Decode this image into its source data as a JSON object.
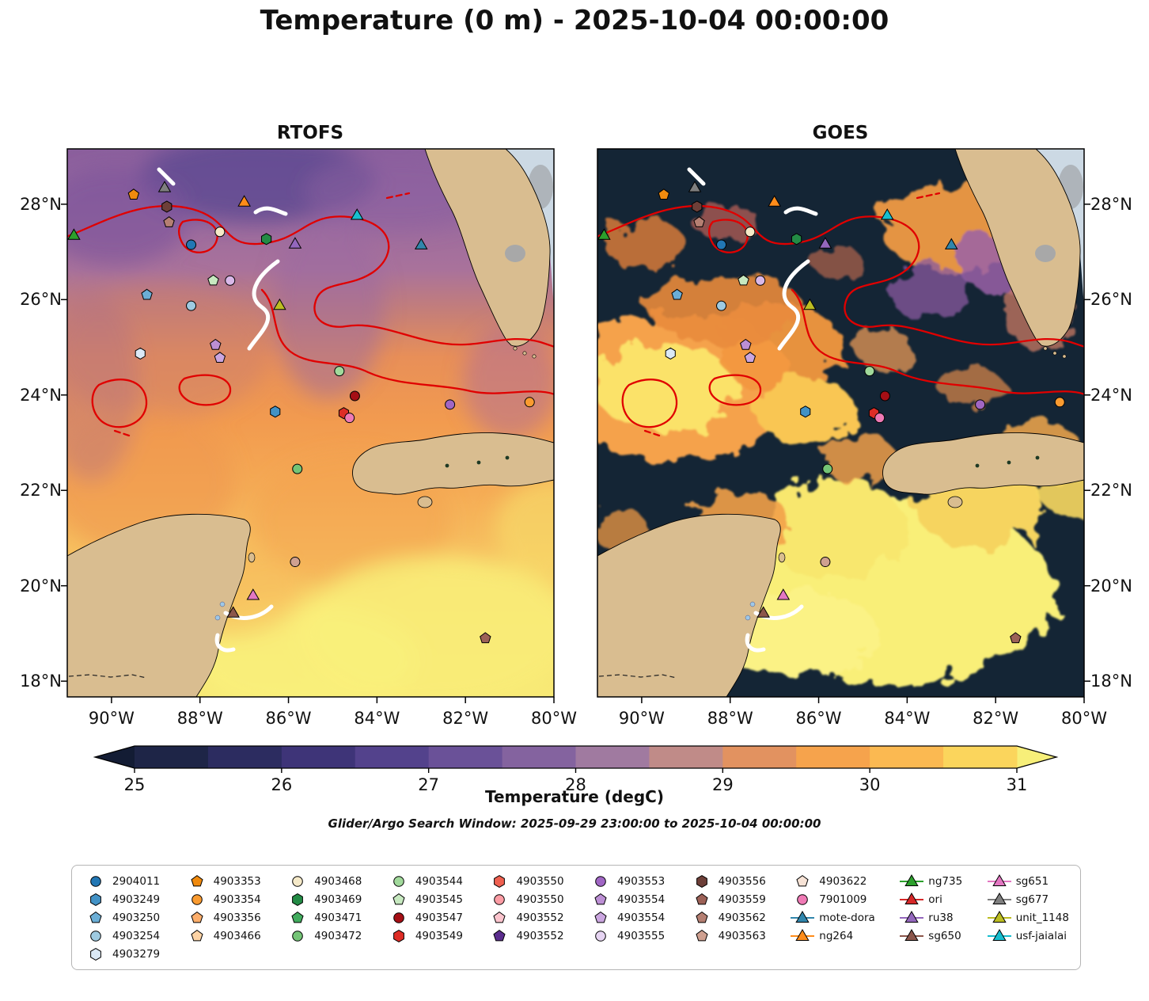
{
  "title": "Temperature (0 m) - 2025-10-04 00:00:00",
  "subtitle": "Glider/Argo Search Window: 2025-09-29 23:00:00 to 2025-10-04 00:00:00",
  "panels": {
    "left": "RTOFS",
    "right": "GOES"
  },
  "axes": {
    "lat_labels": [
      "28°N",
      "26°N",
      "24°N",
      "22°N",
      "20°N",
      "18°N"
    ],
    "lat_values": [
      28,
      26,
      24,
      22,
      20,
      18
    ],
    "lon_labels": [
      "90°W",
      "88°W",
      "86°W",
      "84°W",
      "82°W",
      "80°W"
    ],
    "lon_values": [
      -90,
      -88,
      -86,
      -84,
      -82,
      -80
    ]
  },
  "colorbar": {
    "label": "Temperature (degC)",
    "ticks": [
      25,
      26,
      27,
      28,
      29,
      30,
      31
    ],
    "min": 25,
    "max": 31,
    "under_color": "#131c34",
    "over_color": "#f7ef79",
    "bands": [
      {
        "from": 25.0,
        "to": 25.5,
        "color": "#1e2547"
      },
      {
        "from": 25.5,
        "to": 26.0,
        "color": "#2c2c60"
      },
      {
        "from": 26.0,
        "to": 26.5,
        "color": "#3e3478"
      },
      {
        "from": 26.5,
        "to": 27.0,
        "color": "#53428c"
      },
      {
        "from": 27.0,
        "to": 27.5,
        "color": "#6a5198"
      },
      {
        "from": 27.5,
        "to": 28.0,
        "color": "#84639f"
      },
      {
        "from": 28.0,
        "to": 28.5,
        "color": "#a07aa0"
      },
      {
        "from": 28.5,
        "to": 29.0,
        "color": "#c08b88"
      },
      {
        "from": 29.0,
        "to": 29.5,
        "color": "#e29260"
      },
      {
        "from": 29.5,
        "to": 30.0,
        "color": "#f6a34c"
      },
      {
        "from": 30.0,
        "to": 30.5,
        "color": "#fbb951"
      },
      {
        "from": 30.5,
        "to": 31.0,
        "color": "#fbd55c"
      }
    ]
  },
  "chart_data": {
    "type": "heatmap",
    "title": "Temperature (0 m) - 2025-10-04 00:00:00",
    "variable": "Sea surface temperature",
    "units": "degC",
    "value_range": [
      25,
      31
    ],
    "extent": {
      "lon_west": -91,
      "lon_east": -80,
      "lat_south": 17.7,
      "lat_north": 29.2
    },
    "panels": [
      {
        "name": "RTOFS",
        "description": "Model SST field: purple 27-28C band in north, orange 29-30C central Gulf, yellow 30-31C south/southeast near Cuba and Yucatan Channel"
      },
      {
        "name": "GOES",
        "description": "Satellite SST with dark navy cloud-masked gaps; orange/yellow clear-sky patches west-central Gulf and south of Cuba"
      }
    ],
    "overlays": [
      {
        "name": "temperature-contours",
        "color": "#e00000"
      },
      {
        "name": "glider-tracks",
        "color": "#ffffff"
      }
    ],
    "markers": [
      {
        "id": "sg677",
        "shape": "triangle",
        "color": "#7f7f7f",
        "lon": -88.8,
        "lat": 28.35
      },
      {
        "id": "4903353",
        "shape": "pentagon",
        "color": "#f08a0e",
        "lon": -89.5,
        "lat": 28.2
      },
      {
        "id": "ng264",
        "shape": "triangle",
        "color": "#ff8c1a",
        "lon": -87.0,
        "lat": 28.05
      },
      {
        "id": "4903556",
        "shape": "hexagon",
        "color": "#6d3f38",
        "lon": -88.75,
        "lat": 27.95
      },
      {
        "id": "4903562",
        "shape": "pentagon",
        "color": "#b57f72",
        "lon": -88.7,
        "lat": 27.62
      },
      {
        "id": "ng735",
        "shape": "triangle",
        "color": "#2ca02c",
        "lon": -90.85,
        "lat": 27.35
      },
      {
        "id": "4903468",
        "shape": "circle",
        "color": "#f5e9c8",
        "lon": -87.55,
        "lat": 27.42
      },
      {
        "id": "2904011",
        "shape": "circle",
        "color": "#2277b4",
        "lon": -88.2,
        "lat": 27.15
      },
      {
        "id": "4903469",
        "shape": "hexagon",
        "color": "#238b45",
        "lon": -86.5,
        "lat": 27.27
      },
      {
        "id": "ru38",
        "shape": "triangle",
        "color": "#9467bd",
        "lon": -85.85,
        "lat": 27.17
      },
      {
        "id": "usf-jaialai",
        "shape": "triangle",
        "color": "#17becf",
        "lon": -84.45,
        "lat": 27.77
      },
      {
        "id": "mote-dora",
        "shape": "triangle",
        "color": "#3186ac",
        "lon": -83.0,
        "lat": 27.15
      },
      {
        "id": "4903545",
        "shape": "pentagon",
        "color": "#c7e9c0",
        "lon": -87.7,
        "lat": 26.4
      },
      {
        "id": "4903555",
        "shape": "circle",
        "color": "#d9b8e8",
        "lon": -87.32,
        "lat": 26.4
      },
      {
        "id": "4903250",
        "shape": "pentagon",
        "color": "#6baed6",
        "lon": -89.2,
        "lat": 26.1
      },
      {
        "id": "4903254",
        "shape": "circle",
        "color": "#9ecae1",
        "lon": -88.2,
        "lat": 25.87
      },
      {
        "id": "unit_1148",
        "shape": "triangle",
        "color": "#bcbd22",
        "lon": -86.2,
        "lat": 25.88
      },
      {
        "id": "4903279",
        "shape": "hexagon",
        "color": "#dbe9f6",
        "lon": -89.35,
        "lat": 24.87
      },
      {
        "id": "4903554",
        "shape": "pentagon",
        "color": "#bc8fd4",
        "lon": -87.65,
        "lat": 25.05
      },
      {
        "id": "4903554",
        "shape": "pentagon",
        "color": "#cba6e0",
        "lon": -87.55,
        "lat": 24.78
      },
      {
        "id": "4903544",
        "shape": "circle",
        "color": "#a1d99b",
        "lon": -84.85,
        "lat": 24.5
      },
      {
        "id": "4903547",
        "shape": "circle",
        "color": "#a50f15",
        "lon": -84.5,
        "lat": 23.98
      },
      {
        "id": "4903249",
        "shape": "hexagon",
        "color": "#4292c6",
        "lon": -86.3,
        "lat": 23.65
      },
      {
        "id": "4903549",
        "shape": "hexagon",
        "color": "#de2d26",
        "lon": -84.75,
        "lat": 23.62
      },
      {
        "id": "7901009",
        "shape": "circle",
        "color": "#ef7ab5",
        "lon": -84.62,
        "lat": 23.52
      },
      {
        "id": "4903553",
        "shape": "circle",
        "color": "#a066c4",
        "lon": -82.35,
        "lat": 23.8
      },
      {
        "id": "4903354",
        "shape": "circle",
        "color": "#fa9b30",
        "lon": -80.55,
        "lat": 23.85
      },
      {
        "id": "4903472",
        "shape": "circle",
        "color": "#74c476",
        "lon": -85.8,
        "lat": 22.45
      },
      {
        "id": "4903563",
        "shape": "circle",
        "color": "#cfa090",
        "lon": -85.85,
        "lat": 20.5
      },
      {
        "id": "sg651",
        "shape": "triangle",
        "color": "#e377c2",
        "lon": -86.8,
        "lat": 19.8
      },
      {
        "id": "sg650",
        "shape": "triangle",
        "color": "#8c564b",
        "lon": -87.25,
        "lat": 19.43
      },
      {
        "id": "4903559",
        "shape": "pentagon",
        "color": "#9c6157",
        "lon": -81.55,
        "lat": 18.9
      }
    ]
  },
  "legend": {
    "columns": [
      [
        {
          "label": "2904011",
          "shape": "circle",
          "color": "#2277b4",
          "line": false
        },
        {
          "label": "4903249",
          "shape": "hexagon",
          "color": "#4292c6",
          "line": false
        },
        {
          "label": "4903250",
          "shape": "pentagon",
          "color": "#6baed6",
          "line": false
        },
        {
          "label": "4903254",
          "shape": "circle",
          "color": "#9ecae1",
          "line": false
        },
        {
          "label": "4903279",
          "shape": "hexagon",
          "color": "#dbe9f6",
          "line": false
        }
      ],
      [
        {
          "label": "4903353",
          "shape": "pentagon",
          "color": "#f08a0e",
          "line": false
        },
        {
          "label": "4903354",
          "shape": "circle",
          "color": "#fa9b30",
          "line": false
        },
        {
          "label": "4903356",
          "shape": "pentagon",
          "color": "#fdae6b",
          "line": false
        },
        {
          "label": "4903466",
          "shape": "pentagon",
          "color": "#fdd3a5",
          "line": false
        }
      ],
      [
        {
          "label": "4903468",
          "shape": "circle",
          "color": "#f5e9c8",
          "line": false
        },
        {
          "label": "4903469",
          "shape": "hexagon",
          "color": "#238b45",
          "line": false
        },
        {
          "label": "4903471",
          "shape": "pentagon",
          "color": "#41ab5d",
          "line": false
        },
        {
          "label": "4903472",
          "shape": "circle",
          "color": "#74c476",
          "line": false
        }
      ],
      [
        {
          "label": "4903544",
          "shape": "circle",
          "color": "#a1d99b",
          "line": false
        },
        {
          "label": "4903545",
          "shape": "pentagon",
          "color": "#c7e9c0",
          "line": false
        },
        {
          "label": "4903547",
          "shape": "circle",
          "color": "#a50f15",
          "line": false
        },
        {
          "label": "4903549",
          "shape": "hexagon",
          "color": "#de2d26",
          "line": false
        }
      ],
      [
        {
          "label": "4903550",
          "shape": "hexagon",
          "color": "#ef6050",
          "line": false
        },
        {
          "label": "4903550",
          "shape": "circle",
          "color": "#fc9ca4",
          "line": false
        },
        {
          "label": "4903552",
          "shape": "pentagon",
          "color": "#fbc4cd",
          "line": false
        },
        {
          "label": "4903552",
          "shape": "pentagon",
          "color": "#5b2d8e",
          "line": false
        }
      ],
      [
        {
          "label": "4903553",
          "shape": "circle",
          "color": "#a066c4",
          "line": false
        },
        {
          "label": "4903554",
          "shape": "pentagon",
          "color": "#bc8fd4",
          "line": false
        },
        {
          "label": "4903554",
          "shape": "pentagon",
          "color": "#cba6e0",
          "line": false
        },
        {
          "label": "4903555",
          "shape": "circle",
          "color": "#e6d4f2",
          "line": false
        }
      ],
      [
        {
          "label": "4903556",
          "shape": "hexagon",
          "color": "#6d3f38",
          "line": false
        },
        {
          "label": "4903559",
          "shape": "pentagon",
          "color": "#9c6157",
          "line": false
        },
        {
          "label": "4903562",
          "shape": "pentagon",
          "color": "#b57f72",
          "line": false
        },
        {
          "label": "4903563",
          "shape": "pentagon",
          "color": "#cfa090",
          "line": false
        }
      ],
      [
        {
          "label": "4903622",
          "shape": "pentagon",
          "color": "#f7e3d6",
          "line": false
        },
        {
          "label": "7901009",
          "shape": "circle",
          "color": "#ef7ab5",
          "line": false
        },
        {
          "label": "mote-dora",
          "shape": "triangle",
          "color": "#3186ac",
          "line": true
        },
        {
          "label": "ng264",
          "shape": "triangle",
          "color": "#ff8c1a",
          "line": true
        }
      ],
      [
        {
          "label": "ng735",
          "shape": "triangle",
          "color": "#2ca02c",
          "line": true
        },
        {
          "label": "ori",
          "shape": "triangle",
          "color": "#d62728",
          "line": true
        },
        {
          "label": "ru38",
          "shape": "triangle",
          "color": "#9467bd",
          "line": true
        },
        {
          "label": "sg650",
          "shape": "triangle",
          "color": "#8c564b",
          "line": true
        }
      ],
      [
        {
          "label": "sg651",
          "shape": "triangle",
          "color": "#e377c2",
          "line": true
        },
        {
          "label": "sg677",
          "shape": "triangle",
          "color": "#7f7f7f",
          "line": true
        },
        {
          "label": "unit_1148",
          "shape": "triangle",
          "color": "#bcbd22",
          "line": true
        },
        {
          "label": "usf-jaialai",
          "shape": "triangle",
          "color": "#17becf",
          "line": true
        }
      ]
    ]
  }
}
